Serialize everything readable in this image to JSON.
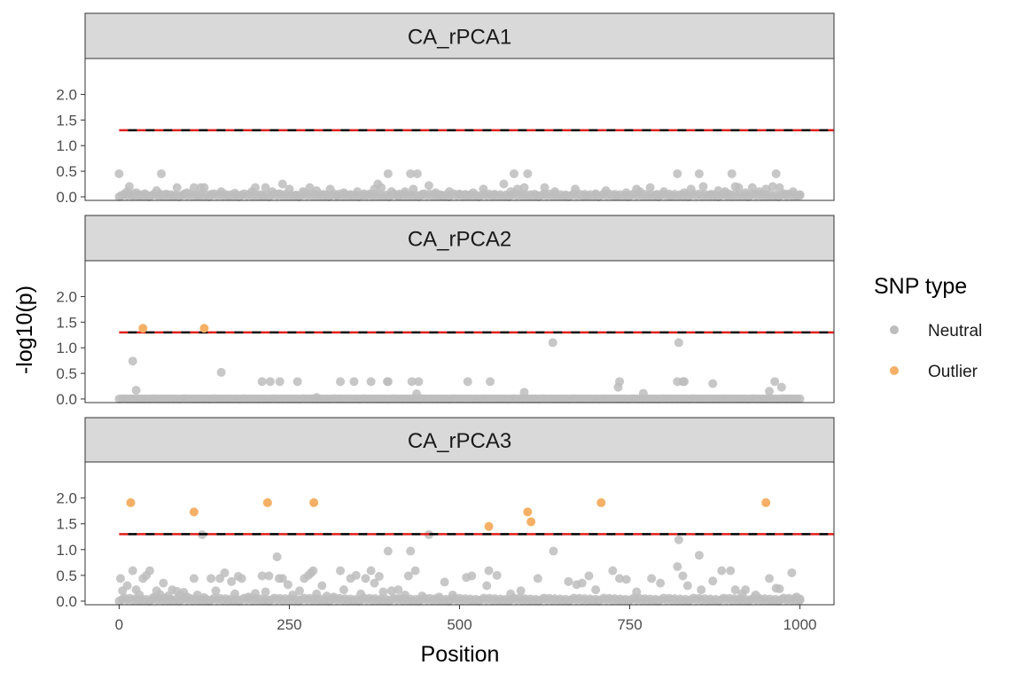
{
  "chart_data": {
    "type": "scatter",
    "xlabel": "Position",
    "ylabel": "-log10(p)",
    "xlim": [
      -50,
      1050
    ],
    "xticks": [
      0,
      250,
      500,
      750,
      1000
    ],
    "ylim": [
      -0.07,
      2.7
    ],
    "yticks": [
      0.0,
      0.5,
      1.0,
      1.5,
      2.0
    ],
    "ytick_labels": [
      "0.0",
      "0.5",
      "1.0",
      "1.5",
      "2.0"
    ],
    "threshold": 1.3,
    "threshold_style": "black and red dashed horizontal line",
    "grid": false,
    "legend": {
      "title": "SNP type",
      "placement": "right",
      "entries": [
        {
          "label": "Neutral",
          "color": "#bdbdbd"
        },
        {
          "label": "Outlier",
          "color": "#f5b066"
        }
      ]
    },
    "colors": {
      "neutral": "#bdbdbd",
      "outlier": "#f5b066",
      "strip_bg": "#d9d9d9",
      "threshold_dark": "#000000",
      "threshold_red": "#e0201c"
    },
    "panels": [
      {
        "title": "CA_rPCA1",
        "neutral": [
          [
            0,
            0.45
          ],
          [
            3,
            0.02
          ],
          [
            8,
            0.05
          ],
          [
            12,
            0.1
          ],
          [
            15,
            0.2
          ],
          [
            20,
            0.03
          ],
          [
            25,
            0.08
          ],
          [
            30,
            0.02
          ],
          [
            38,
            0.06
          ],
          [
            45,
            0.01
          ],
          [
            55,
            0.12
          ],
          [
            60,
            0.03
          ],
          [
            62,
            0.45
          ],
          [
            70,
            0.05
          ],
          [
            80,
            0.02
          ],
          [
            85,
            0.18
          ],
          [
            95,
            0.04
          ],
          [
            100,
            0.08
          ],
          [
            110,
            0.18
          ],
          [
            115,
            0.02
          ],
          [
            120,
            0.18
          ],
          [
            125,
            0.18
          ],
          [
            135,
            0.05
          ],
          [
            150,
            0.1
          ],
          [
            160,
            0.02
          ],
          [
            170,
            0.07
          ],
          [
            180,
            0.04
          ],
          [
            195,
            0.1
          ],
          [
            200,
            0.18
          ],
          [
            210,
            0.02
          ],
          [
            215,
            0.18
          ],
          [
            225,
            0.1
          ],
          [
            235,
            0.06
          ],
          [
            240,
            0.25
          ],
          [
            250,
            0.15
          ],
          [
            260,
            0.03
          ],
          [
            270,
            0.1
          ],
          [
            280,
            0.18
          ],
          [
            290,
            0.12
          ],
          [
            300,
            0.05
          ],
          [
            310,
            0.15
          ],
          [
            320,
            0.02
          ],
          [
            330,
            0.08
          ],
          [
            340,
            0.04
          ],
          [
            350,
            0.1
          ],
          [
            360,
            0.03
          ],
          [
            370,
            0.05
          ],
          [
            375,
            0.15
          ],
          [
            380,
            0.25
          ],
          [
            385,
            0.18
          ],
          [
            395,
            0.45
          ],
          [
            400,
            0.1
          ],
          [
            410,
            0.02
          ],
          [
            420,
            0.1
          ],
          [
            428,
            0.45
          ],
          [
            432,
            0.15
          ],
          [
            438,
            0.45
          ],
          [
            445,
            0.05
          ],
          [
            455,
            0.22
          ],
          [
            465,
            0.08
          ],
          [
            475,
            0.02
          ],
          [
            485,
            0.1
          ],
          [
            500,
            0.05
          ],
          [
            510,
            0.03
          ],
          [
            520,
            0.08
          ],
          [
            535,
            0.15
          ],
          [
            550,
            0.04
          ],
          [
            565,
            0.25
          ],
          [
            575,
            0.1
          ],
          [
            580,
            0.45
          ],
          [
            585,
            0.15
          ],
          [
            595,
            0.18
          ],
          [
            600,
            0.45
          ],
          [
            610,
            0.05
          ],
          [
            625,
            0.18
          ],
          [
            640,
            0.1
          ],
          [
            655,
            0.03
          ],
          [
            670,
            0.15
          ],
          [
            685,
            0.02
          ],
          [
            700,
            0.06
          ],
          [
            715,
            0.12
          ],
          [
            730,
            0.02
          ],
          [
            745,
            0.08
          ],
          [
            760,
            0.15
          ],
          [
            765,
            0.1
          ],
          [
            780,
            0.18
          ],
          [
            790,
            0.05
          ],
          [
            800,
            0.1
          ],
          [
            810,
            0.02
          ],
          [
            820,
            0.45
          ],
          [
            830,
            0.08
          ],
          [
            840,
            0.15
          ],
          [
            852,
            0.45
          ],
          [
            858,
            0.2
          ],
          [
            870,
            0.05
          ],
          [
            880,
            0.12
          ],
          [
            890,
            0.1
          ],
          [
            895,
            0.03
          ],
          [
            900,
            0.45
          ],
          [
            905,
            0.2
          ],
          [
            910,
            0.18
          ],
          [
            920,
            0.08
          ],
          [
            930,
            0.18
          ],
          [
            940,
            0.1
          ],
          [
            950,
            0.15
          ],
          [
            960,
            0.2
          ],
          [
            965,
            0.45
          ],
          [
            970,
            0.18
          ],
          [
            980,
            0.05
          ],
          [
            990,
            0.1
          ],
          [
            995,
            0.02
          ],
          [
            1000,
            0.03
          ]
        ],
        "outlier": []
      },
      {
        "title": "CA_rPCA2",
        "neutral": [
          [
            20,
            0.74
          ],
          [
            25,
            0.17
          ],
          [
            150,
            0.52
          ],
          [
            210,
            0.34
          ],
          [
            222,
            0.34
          ],
          [
            236,
            0.34
          ],
          [
            262,
            0.34
          ],
          [
            290,
            0.03
          ],
          [
            325,
            0.34
          ],
          [
            345,
            0.34
          ],
          [
            370,
            0.34
          ],
          [
            394,
            0.34
          ],
          [
            395,
            0.34
          ],
          [
            430,
            0.34
          ],
          [
            437,
            0.1
          ],
          [
            440,
            0.34
          ],
          [
            512,
            0.34
          ],
          [
            545,
            0.34
          ],
          [
            595,
            0.13
          ],
          [
            637,
            1.1
          ],
          [
            733,
            0.23
          ],
          [
            735,
            0.34
          ],
          [
            770,
            0.11
          ],
          [
            820,
            0.34
          ],
          [
            822,
            1.1
          ],
          [
            828,
            0.34
          ],
          [
            830,
            0.34
          ],
          [
            872,
            0.3
          ],
          [
            955,
            0.15
          ],
          [
            963,
            0.34
          ],
          [
            973,
            0.23
          ]
        ],
        "outlier": [
          [
            35,
            1.38
          ],
          [
            125,
            1.38
          ]
        ]
      },
      {
        "title": "CA_rPCA3",
        "neutral": [
          [
            2,
            0.44
          ],
          [
            5,
            0.2
          ],
          [
            12,
            0.3
          ],
          [
            20,
            0.59
          ],
          [
            25,
            0.22
          ],
          [
            30,
            0.12
          ],
          [
            35,
            0.44
          ],
          [
            40,
            0.5
          ],
          [
            45,
            0.59
          ],
          [
            50,
            0.07
          ],
          [
            55,
            0.2
          ],
          [
            60,
            0.13
          ],
          [
            65,
            0.35
          ],
          [
            72,
            0.1
          ],
          [
            78,
            0.22
          ],
          [
            85,
            0.19
          ],
          [
            90,
            0.12
          ],
          [
            95,
            0.17
          ],
          [
            100,
            0.08
          ],
          [
            110,
            0.44
          ],
          [
            115,
            0.12
          ],
          [
            122,
            1.29
          ],
          [
            125,
            0.07
          ],
          [
            135,
            0.44
          ],
          [
            142,
            0.2
          ],
          [
            148,
            0.44
          ],
          [
            155,
            0.55
          ],
          [
            165,
            0.38
          ],
          [
            170,
            0.14
          ],
          [
            175,
            0.48
          ],
          [
            180,
            0.44
          ],
          [
            190,
            0.08
          ],
          [
            200,
            0.15
          ],
          [
            210,
            0.49
          ],
          [
            215,
            0.18
          ],
          [
            220,
            0.49
          ],
          [
            232,
            0.86
          ],
          [
            235,
            0.44
          ],
          [
            240,
            0.44
          ],
          [
            248,
            0.32
          ],
          [
            255,
            0.12
          ],
          [
            265,
            0.2
          ],
          [
            272,
            0.44
          ],
          [
            278,
            0.5
          ],
          [
            282,
            0.55
          ],
          [
            285,
            0.59
          ],
          [
            290,
            0.14
          ],
          [
            298,
            0.3
          ],
          [
            305,
            0.1
          ],
          [
            315,
            0.08
          ],
          [
            325,
            0.59
          ],
          [
            330,
            0.22
          ],
          [
            340,
            0.44
          ],
          [
            348,
            0.5
          ],
          [
            355,
            0.14
          ],
          [
            362,
            0.44
          ],
          [
            370,
            0.59
          ],
          [
            375,
            0.35
          ],
          [
            382,
            0.48
          ],
          [
            388,
            0.18
          ],
          [
            395,
            0.97
          ],
          [
            400,
            0.2
          ],
          [
            410,
            0.22
          ],
          [
            420,
            0.12
          ],
          [
            425,
            0.49
          ],
          [
            428,
            0.97
          ],
          [
            435,
            0.59
          ],
          [
            445,
            0.1
          ],
          [
            455,
            1.29
          ],
          [
            470,
            0.08
          ],
          [
            478,
            0.37
          ],
          [
            490,
            0.12
          ],
          [
            510,
            0.46
          ],
          [
            518,
            0.49
          ],
          [
            540,
            0.3
          ],
          [
            543,
            0.59
          ],
          [
            555,
            0.5
          ],
          [
            575,
            0.14
          ],
          [
            590,
            0.2
          ],
          [
            615,
            0.44
          ],
          [
            638,
            0.97
          ],
          [
            660,
            0.38
          ],
          [
            672,
            0.32
          ],
          [
            680,
            0.35
          ],
          [
            690,
            0.49
          ],
          [
            700,
            0.22
          ],
          [
            725,
            0.59
          ],
          [
            735,
            0.44
          ],
          [
            745,
            0.42
          ],
          [
            760,
            0.18
          ],
          [
            782,
            0.44
          ],
          [
            795,
            0.35
          ],
          [
            820,
            0.67
          ],
          [
            822,
            1.19
          ],
          [
            828,
            0.49
          ],
          [
            835,
            0.3
          ],
          [
            852,
            0.89
          ],
          [
            855,
            0.22
          ],
          [
            872,
            0.39
          ],
          [
            885,
            0.59
          ],
          [
            898,
            0.59
          ],
          [
            905,
            0.22
          ],
          [
            915,
            0.14
          ],
          [
            920,
            0.22
          ],
          [
            935,
            0.12
          ],
          [
            955,
            0.44
          ],
          [
            965,
            0.25
          ],
          [
            970,
            0.24
          ],
          [
            988,
            0.55
          ],
          [
            995,
            0.08
          ],
          [
            1000,
            0.02
          ]
        ],
        "outlier": [
          [
            17,
            1.91
          ],
          [
            110,
            1.73
          ],
          [
            218,
            1.91
          ],
          [
            286,
            1.91
          ],
          [
            543,
            1.45
          ],
          [
            600,
            1.73
          ],
          [
            605,
            1.54
          ],
          [
            708,
            1.91
          ],
          [
            950,
            1.91
          ]
        ]
      }
    ]
  }
}
